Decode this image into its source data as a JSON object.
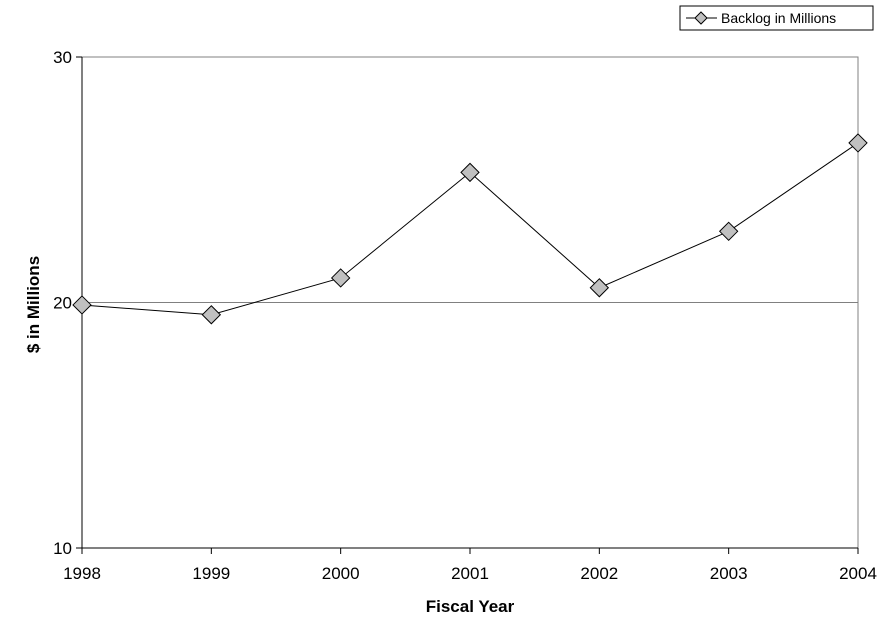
{
  "chart_data": {
    "type": "line",
    "title": "",
    "xlabel": "Fiscal Year",
    "ylabel": "$ in Millions",
    "x": [
      "1998",
      "1999",
      "2000",
      "2001",
      "2002",
      "2003",
      "2004"
    ],
    "series": [
      {
        "name": "Backlog in Millions",
        "values": [
          19.9,
          19.5,
          21.0,
          25.3,
          20.6,
          22.9,
          26.5
        ],
        "color": "#000000",
        "marker_fill": "#c0c0c0"
      }
    ],
    "ylim": [
      10,
      30
    ],
    "yticks": [
      "10",
      "20",
      "30"
    ],
    "grid": "horizontal-major",
    "gridline_color": "#808080",
    "legend_position": "top-right"
  }
}
